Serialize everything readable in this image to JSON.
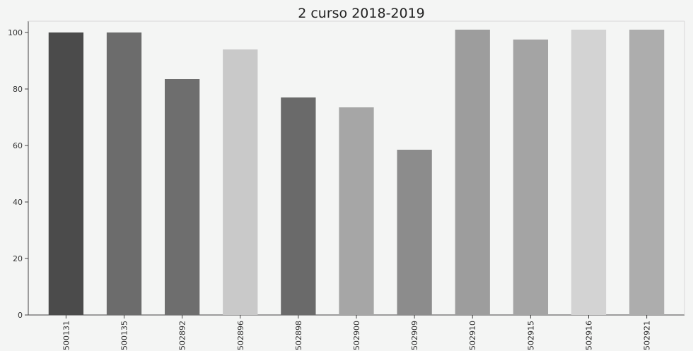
{
  "chart_data": {
    "type": "bar",
    "title": "2 curso 2018-2019",
    "xlabel": "",
    "ylabel": "",
    "categories": [
      "500131",
      "500135",
      "502892",
      "502896",
      "502898",
      "502900",
      "502909",
      "502910",
      "502915",
      "502916",
      "502921"
    ],
    "values": [
      100,
      100,
      83.5,
      94,
      77,
      73.5,
      58.5,
      101,
      97.5,
      101,
      101
    ],
    "bar_colors": [
      "#4b4b4b",
      "#6c6c6c",
      "#6e6e6e",
      "#c9c9c9",
      "#6a6a6a",
      "#a6a6a6",
      "#8c8c8c",
      "#9d9d9d",
      "#a4a4a4",
      "#d3d3d3",
      "#adadad"
    ],
    "ylim": [
      0,
      104
    ],
    "yticks": [
      0,
      20,
      40,
      60,
      80,
      100
    ],
    "grid": false
  }
}
